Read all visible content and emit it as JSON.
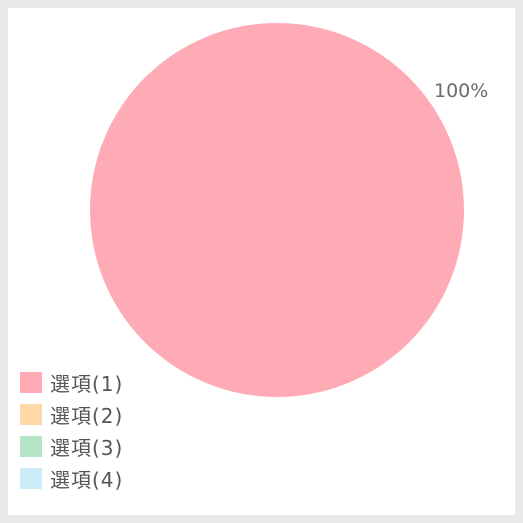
{
  "chart_data": {
    "type": "pie",
    "categories": [
      "選項(1)",
      "選項(2)",
      "選項(3)",
      "選項(4)"
    ],
    "values": [
      100,
      0,
      0,
      0
    ],
    "colors": [
      "#ffabb5",
      "#ffd8aa",
      "#b3e5c6",
      "#ccecfa"
    ],
    "data_labels": [
      "100%"
    ],
    "legend": {
      "position": "bottom-left",
      "items": [
        {
          "label": "選項(1)",
          "color": "#ffabb5"
        },
        {
          "label": "選項(2)",
          "color": "#ffd8aa"
        },
        {
          "label": "選項(3)",
          "color": "#b3e5c6"
        },
        {
          "label": "選項(4)",
          "color": "#ccecfa"
        }
      ]
    }
  }
}
